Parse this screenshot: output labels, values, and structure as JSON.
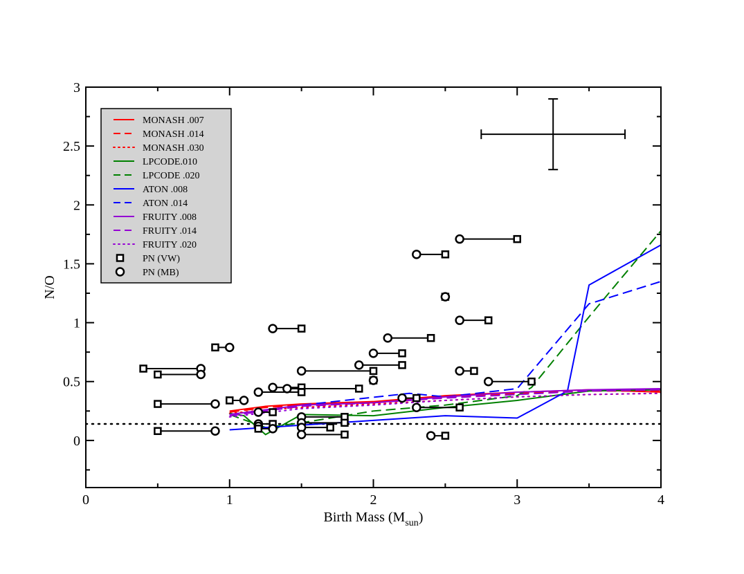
{
  "chart_data": {
    "type": "scatter",
    "xlabel": "Birth Mass (M",
    "xlabel_sub": "sun",
    "xlabel_end": ")",
    "ylabel": "N/O",
    "xlim": [
      0,
      4
    ],
    "ylim": [
      -0.4,
      3
    ],
    "x_ticks": [
      0,
      1,
      2,
      3,
      4
    ],
    "x_tick_labels": [
      "0",
      "1",
      "2",
      "3",
      "4"
    ],
    "y_ticks": [
      0,
      0.5,
      1,
      1.5,
      2,
      2.5,
      3
    ],
    "y_tick_labels": [
      "0",
      "0.5",
      "1",
      "1.5",
      "2",
      "2.5",
      "3"
    ],
    "reference_line": {
      "y": 0.14,
      "style": "dotted",
      "color": "#000000"
    },
    "error_bar": {
      "x": 3.25,
      "y": 2.6,
      "x_err": 0.5,
      "y_err": 0.3
    },
    "legend_position": "top-left",
    "legend": [
      {
        "label": "MONASH .007",
        "kind": "line",
        "color": "#ff0000",
        "dash": "solid"
      },
      {
        "label": "MONASH .014",
        "kind": "line",
        "color": "#ff0000",
        "dash": "dashed"
      },
      {
        "label": "MONASH .030",
        "kind": "line",
        "color": "#ff0000",
        "dash": "dotted"
      },
      {
        "label": "LPCODE.010",
        "kind": "line",
        "color": "#008000",
        "dash": "solid"
      },
      {
        "label": "LPCODE .020",
        "kind": "line",
        "color": "#008000",
        "dash": "dashed"
      },
      {
        "label": "ATON .008",
        "kind": "line",
        "color": "#0000ff",
        "dash": "solid"
      },
      {
        "label": "ATON .014",
        "kind": "line",
        "color": "#0000ff",
        "dash": "dashed"
      },
      {
        "label": "FRUITY .008",
        "kind": "line",
        "color": "#9400d3",
        "dash": "solid"
      },
      {
        "label": "FRUITY .014",
        "kind": "line",
        "color": "#9400d3",
        "dash": "dashed"
      },
      {
        "label": "FRUITY .020",
        "kind": "line",
        "color": "#9400d3",
        "dash": "dotted"
      },
      {
        "label": "PN (VW)",
        "kind": "square",
        "color": "#000000"
      },
      {
        "label": "PN (MB)",
        "kind": "circle",
        "color": "#000000"
      }
    ],
    "series": [
      {
        "name": "MONASH .007",
        "color": "#ff0000",
        "dash": "solid",
        "x": [
          1,
          1.25,
          1.5,
          2,
          2.5,
          3,
          3.5,
          4
        ],
        "y": [
          0.25,
          0.29,
          0.31,
          0.33,
          0.38,
          0.41,
          0.43,
          0.41
        ]
      },
      {
        "name": "MONASH .014",
        "color": "#ff0000",
        "dash": "dashed",
        "x": [
          1,
          1.25,
          1.5,
          2,
          2.5,
          3,
          3.5,
          4
        ],
        "y": [
          0.24,
          0.28,
          0.3,
          0.32,
          0.37,
          0.4,
          0.42,
          0.42
        ]
      },
      {
        "name": "MONASH .030",
        "color": "#ff0000",
        "dash": "dotted",
        "x": [
          1,
          1.25,
          1.5,
          2,
          2.5,
          3,
          3.5,
          4
        ],
        "y": [
          0.23,
          0.26,
          0.28,
          0.31,
          0.34,
          0.37,
          0.39,
          0.4
        ]
      },
      {
        "name": "LPCODE.010",
        "color": "#008000",
        "dash": "solid",
        "x": [
          1,
          1.1,
          1.25,
          1.5,
          2,
          2.5,
          3,
          3.5,
          4
        ],
        "y": [
          0.23,
          0.21,
          0.05,
          0.22,
          0.21,
          0.28,
          0.34,
          0.42,
          0.43
        ]
      },
      {
        "name": "LPCODE .020",
        "color": "#008000",
        "dash": "dashed",
        "x": [
          1,
          1.25,
          1.5,
          2,
          2.5,
          3,
          3.1,
          3.5,
          4
        ],
        "y": [
          0.22,
          0.11,
          0.15,
          0.25,
          0.3,
          0.38,
          0.45,
          1.05,
          1.78
        ]
      },
      {
        "name": "ATON .008",
        "color": "#0000ff",
        "dash": "solid",
        "x": [
          1,
          1.5,
          2,
          2.5,
          3,
          3.35,
          3.5,
          4
        ],
        "y": [
          0.09,
          0.13,
          0.17,
          0.21,
          0.19,
          0.42,
          1.32,
          1.66
        ]
      },
      {
        "name": "ATON .014",
        "color": "#0000ff",
        "dash": "dashed",
        "x": [
          1,
          1.5,
          2.25,
          2.5,
          3,
          3.5,
          4
        ],
        "y": [
          0.22,
          0.3,
          0.4,
          0.37,
          0.44,
          1.16,
          1.35
        ]
      },
      {
        "name": "FRUITY .008",
        "color": "#9400d3",
        "dash": "solid",
        "x": [
          1,
          1.5,
          2,
          2.5,
          3,
          3.5,
          4
        ],
        "y": [
          0.22,
          0.3,
          0.32,
          0.37,
          0.41,
          0.43,
          0.44
        ]
      },
      {
        "name": "FRUITY .014",
        "color": "#9400d3",
        "dash": "dashed",
        "x": [
          1,
          1.5,
          2,
          2.5,
          3,
          3.5,
          4
        ],
        "y": [
          0.21,
          0.29,
          0.32,
          0.36,
          0.39,
          0.42,
          0.43
        ]
      },
      {
        "name": "FRUITY .020",
        "color": "#9400d3",
        "dash": "dotted",
        "x": [
          1,
          1.5,
          2,
          2.5,
          3,
          3.5,
          4
        ],
        "y": [
          0.2,
          0.27,
          0.3,
          0.34,
          0.37,
          0.39,
          0.4
        ]
      }
    ],
    "pn_pairs": [
      {
        "sq": 0.4,
        "ci": 0.8,
        "y": 0.61
      },
      {
        "sq": 0.5,
        "ci": 0.8,
        "y": 0.56
      },
      {
        "sq": 0.5,
        "ci": 0.9,
        "y": 0.31
      },
      {
        "sq": 0.5,
        "ci": 0.9,
        "y": 0.08
      },
      {
        "sq": 0.9,
        "ci": 1.0,
        "y": 0.79
      },
      {
        "sq": 1.0,
        "ci": 1.1,
        "y": 0.34
      },
      {
        "sq": 1.5,
        "ci": 1.3,
        "y": 0.95
      },
      {
        "sq": 1.5,
        "ci": 1.3,
        "y": 0.45
      },
      {
        "sq": 1.5,
        "ci": 1.2,
        "y": 0.41
      },
      {
        "sq": 1.3,
        "ci": 1.2,
        "y": 0.24
      },
      {
        "sq": 1.3,
        "ci": 1.2,
        "y": 0.14
      },
      {
        "sq": 1.2,
        "ci": 1.2,
        "y": 0.12
      },
      {
        "sq": 1.2,
        "ci": 1.3,
        "y": 0.1
      },
      {
        "sq": 1.8,
        "ci": 1.5,
        "y": 0.2
      },
      {
        "sq": 1.8,
        "ci": 1.5,
        "y": 0.15
      },
      {
        "sq": 1.7,
        "ci": 1.5,
        "y": 0.11
      },
      {
        "sq": 1.8,
        "ci": 1.5,
        "y": 0.05
      },
      {
        "sq": 1.9,
        "ci": 1.4,
        "y": 0.44
      },
      {
        "sq": 2.0,
        "ci": 1.5,
        "y": 0.59
      },
      {
        "sq": 2.0,
        "ci": 2.0,
        "y": 0.51
      },
      {
        "sq": 2.2,
        "ci": 2.0,
        "y": 0.74
      },
      {
        "sq": 2.2,
        "ci": 1.9,
        "y": 0.64
      },
      {
        "sq": 2.4,
        "ci": 2.1,
        "y": 0.87
      },
      {
        "sq": 2.3,
        "ci": 2.2,
        "y": 0.36
      },
      {
        "sq": 2.6,
        "ci": 2.3,
        "y": 0.28
      },
      {
        "sq": 2.5,
        "ci": 2.4,
        "y": 0.04
      },
      {
        "sq": 2.5,
        "ci": 2.3,
        "y": 1.58
      },
      {
        "sq": 2.5,
        "ci": 2.5,
        "y": 1.22
      },
      {
        "sq": 3.0,
        "ci": 2.6,
        "y": 1.71
      },
      {
        "sq": 2.8,
        "ci": 2.6,
        "y": 1.02
      },
      {
        "sq": 2.7,
        "ci": 2.6,
        "y": 0.59
      },
      {
        "sq": 3.1,
        "ci": 2.8,
        "y": 0.5
      }
    ]
  }
}
